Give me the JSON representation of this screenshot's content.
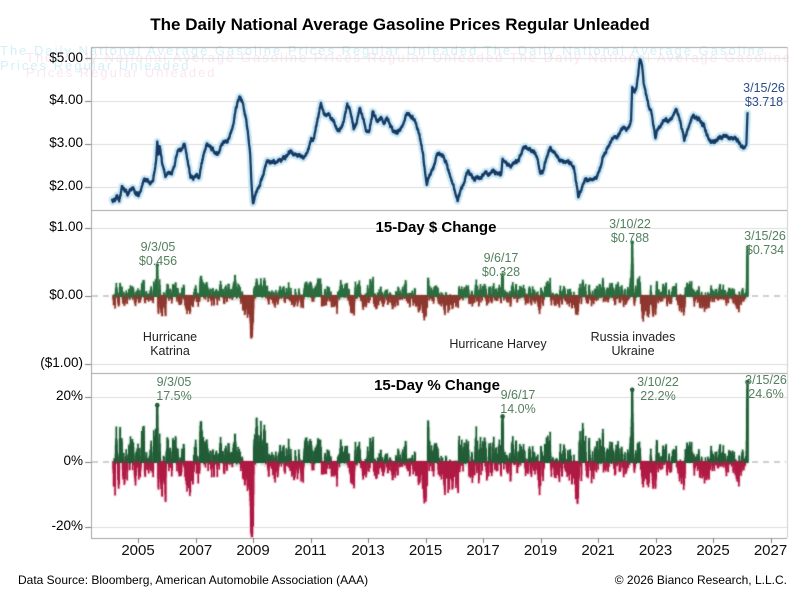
{
  "title": "The Daily National Average Gasoline Prices Regular Unleaded",
  "watermark": {
    "text": "The Daily National Average Gasoline Prices Regular Unleaded The Daily National Average Gasoline Prices Regular Unleaded"
  },
  "x_axis": {
    "years": [
      "2005",
      "2007",
      "2009",
      "2011",
      "2013",
      "2015",
      "2017",
      "2019",
      "2021",
      "2023",
      "2025",
      "2027"
    ]
  },
  "panels": {
    "price": {
      "yticks": [
        "$5.00",
        "$4.00",
        "$3.00",
        "$2.00"
      ],
      "end": {
        "date": "3/15/26",
        "value": "$3.718"
      }
    },
    "dollar": {
      "title": "15-Day $ Change",
      "yticks": [
        "$1.00",
        "$0.00",
        "($1.00)"
      ],
      "annotations": [
        {
          "date": "9/3/05",
          "value": "$0.456"
        },
        {
          "date": "9/6/17",
          "value": "$0.328"
        },
        {
          "date": "3/10/22",
          "value": "$0.788"
        },
        {
          "date": "3/15/26",
          "value": "$0.734"
        }
      ],
      "events": [
        "Hurricane\nKatrina",
        "Hurricane Harvey",
        "Russia invades\nUkraine"
      ]
    },
    "pct": {
      "title": "15-Day % Change",
      "yticks": [
        "20%",
        "0%",
        "-20%"
      ],
      "annotations": [
        {
          "date": "9/3/05",
          "value": "17.5%"
        },
        {
          "date": "9/6/17",
          "value": "14.0%"
        },
        {
          "date": "3/10/22",
          "value": "22.2%"
        },
        {
          "date": "3/15/26",
          "value": "24.6%"
        }
      ]
    }
  },
  "footer": {
    "source": "Data Source: Bloomberg, American Automobile Association (AAA)",
    "copyright": "© 2026 Bianco Research, L.L.C."
  },
  "colors": {
    "line": "#163a64",
    "line_glow": "#cdeaf6",
    "green_dollar": "#2d6e41",
    "green_dollar_halo": "#d9eee0",
    "red_dollar": "#8e3a31",
    "red_dollar_halo": "#f4dcd8",
    "green_pct": "#245e39",
    "green_pct_halo": "#d4eadb",
    "red_pct": "#b01c45",
    "red_pct_halo": "#f9d3e0",
    "annotation_green": "#54805f",
    "annotation_navy": "#2c4e8a",
    "grid": "#dcdcdc",
    "border": "#a3a3a3",
    "zero_dash": "#c0c0c0"
  },
  "chart_data": [
    {
      "type": "line",
      "name": "Daily National Average Gasoline Price, Regular Unleaded ($/gal)",
      "x_range": [
        2004.1,
        2026.2
      ],
      "ylim": [
        1.45,
        5.26
      ],
      "yticks": [
        5.0,
        4.0,
        3.0,
        2.0
      ],
      "last_point": {
        "date": "3/15/26",
        "t": 2026.2,
        "value": 3.718
      },
      "keyframes": [
        [
          2004.1,
          1.72
        ],
        [
          2004.15,
          1.68
        ],
        [
          2004.2,
          1.7
        ],
        [
          2004.28,
          1.76
        ],
        [
          2004.36,
          1.72
        ],
        [
          2004.44,
          2.0
        ],
        [
          2004.54,
          1.92
        ],
        [
          2004.64,
          1.86
        ],
        [
          2004.74,
          1.92
        ],
        [
          2004.84,
          1.96
        ],
        [
          2004.94,
          1.84
        ],
        [
          2005.0,
          1.82
        ],
        [
          2005.1,
          1.9
        ],
        [
          2005.22,
          2.2
        ],
        [
          2005.32,
          2.16
        ],
        [
          2005.42,
          2.1
        ],
        [
          2005.52,
          2.16
        ],
        [
          2005.63,
          2.6
        ],
        [
          2005.67,
          3.06
        ],
        [
          2005.71,
          2.78
        ],
        [
          2005.76,
          2.94
        ],
        [
          2005.85,
          2.5
        ],
        [
          2005.95,
          2.24
        ],
        [
          2006.05,
          2.28
        ],
        [
          2006.18,
          2.32
        ],
        [
          2006.3,
          2.62
        ],
        [
          2006.42,
          2.9
        ],
        [
          2006.52,
          2.86
        ],
        [
          2006.62,
          3.0
        ],
        [
          2006.72,
          2.6
        ],
        [
          2006.82,
          2.25
        ],
        [
          2006.92,
          2.22
        ],
        [
          2007.02,
          2.28
        ],
        [
          2007.12,
          2.22
        ],
        [
          2007.25,
          2.65
        ],
        [
          2007.4,
          3.06
        ],
        [
          2007.5,
          2.96
        ],
        [
          2007.62,
          2.86
        ],
        [
          2007.72,
          2.76
        ],
        [
          2007.82,
          2.8
        ],
        [
          2007.92,
          3.0
        ],
        [
          2008.05,
          3.04
        ],
        [
          2008.15,
          3.1
        ],
        [
          2008.28,
          3.35
        ],
        [
          2008.4,
          3.8
        ],
        [
          2008.54,
          4.114
        ],
        [
          2008.64,
          3.98
        ],
        [
          2008.74,
          3.68
        ],
        [
          2008.84,
          3.2
        ],
        [
          2008.9,
          2.8
        ],
        [
          2008.95,
          2.1
        ],
        [
          2009.0,
          1.616
        ],
        [
          2009.08,
          1.85
        ],
        [
          2009.18,
          1.95
        ],
        [
          2009.3,
          2.15
        ],
        [
          2009.42,
          2.45
        ],
        [
          2009.5,
          2.62
        ],
        [
          2009.6,
          2.52
        ],
        [
          2009.72,
          2.62
        ],
        [
          2009.82,
          2.58
        ],
        [
          2009.92,
          2.62
        ],
        [
          2010.05,
          2.66
        ],
        [
          2010.18,
          2.72
        ],
        [
          2010.3,
          2.86
        ],
        [
          2010.42,
          2.74
        ],
        [
          2010.55,
          2.72
        ],
        [
          2010.68,
          2.7
        ],
        [
          2010.8,
          2.74
        ],
        [
          2010.92,
          2.88
        ],
        [
          2011.0,
          3.06
        ],
        [
          2011.12,
          3.14
        ],
        [
          2011.24,
          3.55
        ],
        [
          2011.36,
          3.96
        ],
        [
          2011.46,
          3.7
        ],
        [
          2011.56,
          3.62
        ],
        [
          2011.64,
          3.7
        ],
        [
          2011.76,
          3.54
        ],
        [
          2011.88,
          3.42
        ],
        [
          2011.96,
          3.28
        ],
        [
          2012.08,
          3.4
        ],
        [
          2012.18,
          3.58
        ],
        [
          2012.28,
          3.92
        ],
        [
          2012.38,
          3.78
        ],
        [
          2012.5,
          3.38
        ],
        [
          2012.6,
          3.48
        ],
        [
          2012.72,
          3.86
        ],
        [
          2012.82,
          3.62
        ],
        [
          2012.94,
          3.32
        ],
        [
          2013.06,
          3.32
        ],
        [
          2013.16,
          3.76
        ],
        [
          2013.26,
          3.62
        ],
        [
          2013.36,
          3.52
        ],
        [
          2013.46,
          3.62
        ],
        [
          2013.56,
          3.48
        ],
        [
          2013.66,
          3.6
        ],
        [
          2013.78,
          3.44
        ],
        [
          2013.9,
          3.28
        ],
        [
          2014.02,
          3.3
        ],
        [
          2014.14,
          3.34
        ],
        [
          2014.26,
          3.56
        ],
        [
          2014.35,
          3.7
        ],
        [
          2014.46,
          3.66
        ],
        [
          2014.56,
          3.62
        ],
        [
          2014.68,
          3.44
        ],
        [
          2014.8,
          3.18
        ],
        [
          2014.92,
          2.7
        ],
        [
          2015.04,
          2.06
        ],
        [
          2015.16,
          2.3
        ],
        [
          2015.28,
          2.46
        ],
        [
          2015.4,
          2.74
        ],
        [
          2015.5,
          2.78
        ],
        [
          2015.62,
          2.72
        ],
        [
          2015.74,
          2.52
        ],
        [
          2015.86,
          2.24
        ],
        [
          2015.96,
          2.04
        ],
        [
          2016.12,
          1.7
        ],
        [
          2016.24,
          1.96
        ],
        [
          2016.36,
          2.14
        ],
        [
          2016.46,
          2.36
        ],
        [
          2016.58,
          2.3
        ],
        [
          2016.7,
          2.18
        ],
        [
          2016.82,
          2.22
        ],
        [
          2016.94,
          2.18
        ],
        [
          2017.05,
          2.34
        ],
        [
          2017.18,
          2.28
        ],
        [
          2017.3,
          2.36
        ],
        [
          2017.42,
          2.34
        ],
        [
          2017.52,
          2.28
        ],
        [
          2017.64,
          2.33
        ],
        [
          2017.68,
          2.66
        ],
        [
          2017.74,
          2.56
        ],
        [
          2017.86,
          2.5
        ],
        [
          2017.96,
          2.46
        ],
        [
          2018.08,
          2.54
        ],
        [
          2018.2,
          2.58
        ],
        [
          2018.32,
          2.74
        ],
        [
          2018.42,
          2.96
        ],
        [
          2018.54,
          2.9
        ],
        [
          2018.66,
          2.86
        ],
        [
          2018.78,
          2.84
        ],
        [
          2018.88,
          2.68
        ],
        [
          2019.0,
          2.26
        ],
        [
          2019.1,
          2.4
        ],
        [
          2019.22,
          2.7
        ],
        [
          2019.33,
          2.9
        ],
        [
          2019.44,
          2.82
        ],
        [
          2019.56,
          2.72
        ],
        [
          2019.68,
          2.62
        ],
        [
          2019.8,
          2.58
        ],
        [
          2019.92,
          2.6
        ],
        [
          2020.04,
          2.56
        ],
        [
          2020.16,
          2.44
        ],
        [
          2020.32,
          1.76
        ],
        [
          2020.46,
          2.02
        ],
        [
          2020.58,
          2.16
        ],
        [
          2020.7,
          2.18
        ],
        [
          2020.82,
          2.16
        ],
        [
          2020.94,
          2.22
        ],
        [
          2021.06,
          2.4
        ],
        [
          2021.18,
          2.72
        ],
        [
          2021.3,
          2.88
        ],
        [
          2021.42,
          3.04
        ],
        [
          2021.54,
          3.14
        ],
        [
          2021.66,
          3.16
        ],
        [
          2021.78,
          3.28
        ],
        [
          2021.9,
          3.4
        ],
        [
          2022.0,
          3.32
        ],
        [
          2022.1,
          3.44
        ],
        [
          2022.15,
          3.54
        ],
        [
          2022.19,
          4.328
        ],
        [
          2022.26,
          4.22
        ],
        [
          2022.33,
          4.28
        ],
        [
          2022.4,
          4.6
        ],
        [
          2022.45,
          5.016
        ],
        [
          2022.52,
          4.84
        ],
        [
          2022.6,
          4.36
        ],
        [
          2022.68,
          4.12
        ],
        [
          2022.76,
          3.88
        ],
        [
          2022.84,
          3.78
        ],
        [
          2022.92,
          3.46
        ],
        [
          2023.0,
          3.12
        ],
        [
          2023.08,
          3.36
        ],
        [
          2023.18,
          3.44
        ],
        [
          2023.28,
          3.54
        ],
        [
          2023.38,
          3.58
        ],
        [
          2023.48,
          3.54
        ],
        [
          2023.58,
          3.58
        ],
        [
          2023.7,
          3.82
        ],
        [
          2023.8,
          3.66
        ],
        [
          2023.92,
          3.36
        ],
        [
          2024.0,
          3.08
        ],
        [
          2024.12,
          3.32
        ],
        [
          2024.22,
          3.56
        ],
        [
          2024.32,
          3.66
        ],
        [
          2024.44,
          3.6
        ],
        [
          2024.56,
          3.52
        ],
        [
          2024.68,
          3.42
        ],
        [
          2024.8,
          3.2
        ],
        [
          2024.92,
          3.04
        ],
        [
          2025.04,
          3.06
        ],
        [
          2025.16,
          3.12
        ],
        [
          2025.28,
          3.16
        ],
        [
          2025.4,
          3.2
        ],
        [
          2025.52,
          3.16
        ],
        [
          2025.64,
          3.14
        ],
        [
          2025.76,
          3.12
        ],
        [
          2025.88,
          3.04
        ],
        [
          2026.0,
          2.96
        ],
        [
          2026.08,
          2.9
        ],
        [
          2026.16,
          2.984
        ],
        [
          2026.2,
          3.718
        ]
      ]
    },
    {
      "type": "bar",
      "title": "15-Day $ Change",
      "derived_from": "15-day difference of daily price series",
      "ylim": [
        -1.26,
        1.26
      ],
      "yticks": [
        1.0,
        0.0,
        -1.0
      ],
      "spikes": [
        {
          "date": "9/3/05",
          "t": 2005.67,
          "value": 0.456,
          "event": "Hurricane Katrina"
        },
        {
          "date": "9/6/17",
          "t": 2017.68,
          "value": 0.328,
          "event": "Hurricane Harvey"
        },
        {
          "date": "3/10/22",
          "t": 2022.19,
          "value": 0.788,
          "event": "Russia invades Ukraine"
        },
        {
          "date": "3/15/26",
          "t": 2026.2,
          "value": 0.734
        }
      ]
    },
    {
      "type": "bar",
      "title": "15-Day % Change",
      "derived_from": "15-day percent change of daily price series",
      "ylim": [
        -25,
        27
      ],
      "yticks": [
        20,
        0,
        -20
      ],
      "spikes": [
        {
          "date": "9/3/05",
          "t": 2005.67,
          "value": 17.5
        },
        {
          "date": "9/6/17",
          "t": 2017.68,
          "value": 14.0
        },
        {
          "date": "3/10/22",
          "t": 2022.19,
          "value": 22.2
        },
        {
          "date": "3/15/26",
          "t": 2026.2,
          "value": 24.6
        }
      ]
    }
  ]
}
